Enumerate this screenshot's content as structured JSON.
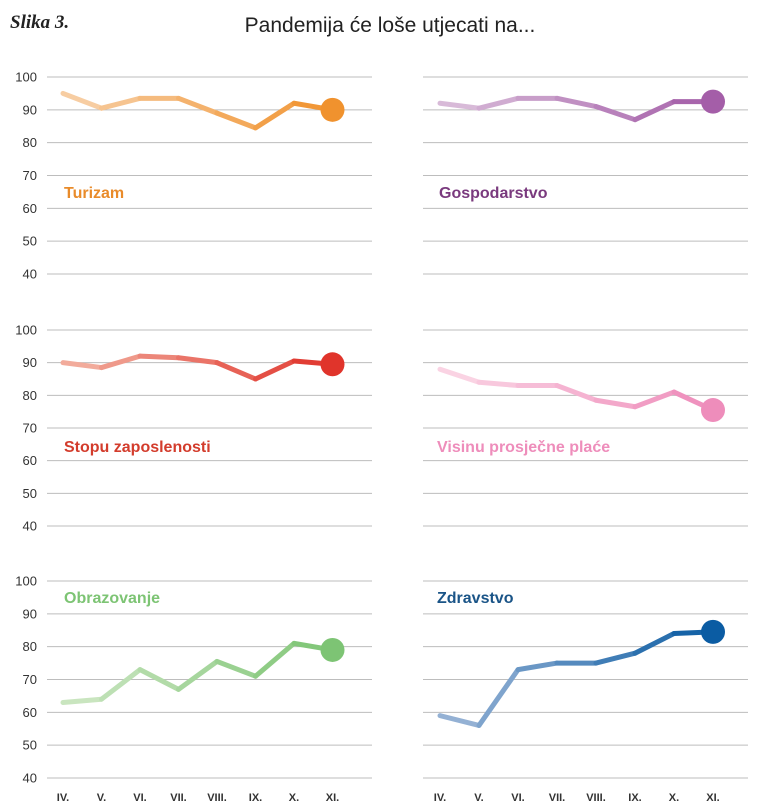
{
  "figure": {
    "label": "Slika 3.",
    "title": "Pandemija će loše utjecati na..."
  },
  "chart_data": {
    "type": "line",
    "x": [
      "IV.",
      "V.",
      "VI.",
      "VII.",
      "VIII.",
      "IX.",
      "X.",
      "XI."
    ],
    "ylim": [
      40,
      100
    ],
    "yticks": [
      40,
      50,
      60,
      70,
      80,
      90,
      100
    ],
    "grid": true,
    "series": [
      {
        "name": "Turizam",
        "values": [
          95,
          90.5,
          93.5,
          93.5,
          89,
          84.5,
          92,
          90
        ],
        "color_light": "#f8d2ab",
        "color": "#f0922e",
        "label_color": "#e98b2a"
      },
      {
        "name": "Gospodarstvo",
        "values": [
          92,
          90.5,
          93.5,
          93.5,
          91,
          87,
          92.5,
          92.5
        ],
        "color_light": "#dcc1dc",
        "color": "#a45ea8",
        "label_color": "#7a3a7e"
      },
      {
        "name": "Stopu zaposlenosti",
        "values": [
          90,
          88.5,
          92,
          91.5,
          90,
          85,
          90.5,
          89.5
        ],
        "color_light": "#f3b4a4",
        "color": "#e0342b",
        "label_color": "#d33c2c"
      },
      {
        "name": "Visinu prosječne plaće",
        "values": [
          88,
          84,
          83,
          83,
          78.5,
          76.5,
          81,
          75.5
        ],
        "color_light": "#fbd8e6",
        "color": "#ee8dbb",
        "label_color": "#ee8dbb"
      },
      {
        "name": "Obrazovanje",
        "values": [
          63,
          64,
          73,
          67,
          75.5,
          71,
          81,
          79
        ],
        "color_light": "#cfe8c5",
        "color": "#7dc474",
        "label_color": "#7dc474"
      },
      {
        "name": "Zdravstvo",
        "values": [
          59,
          56,
          73,
          75,
          75,
          78,
          84,
          84.5
        ],
        "color_light": "#9eb8d8",
        "color": "#0b5ca3",
        "label_color": "#1a5487"
      }
    ]
  }
}
